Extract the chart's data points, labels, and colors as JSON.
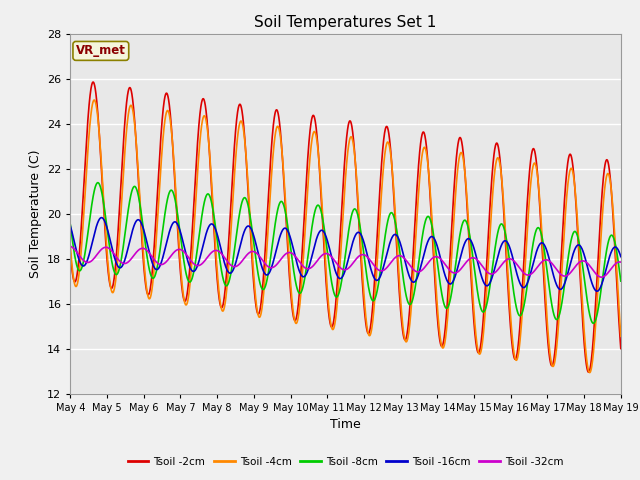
{
  "title": "Soil Temperatures Set 1",
  "xlabel": "Time",
  "ylabel": "Soil Temperature (C)",
  "ylim": [
    12,
    28
  ],
  "annotation": "VR_met",
  "background_color": "#e8e8e8",
  "grid_color": "#ffffff",
  "series": {
    "Tsoil -2cm": {
      "color": "#dd0000",
      "lw": 1.2
    },
    "Tsoil -4cm": {
      "color": "#ff8800",
      "lw": 1.2
    },
    "Tsoil -8cm": {
      "color": "#00cc00",
      "lw": 1.2
    },
    "Tsoil -16cm": {
      "color": "#0000cc",
      "lw": 1.2
    },
    "Tsoil -32cm": {
      "color": "#cc00cc",
      "lw": 1.2
    }
  },
  "tick_labels": [
    "May 4",
    "May 5",
    "May 6",
    "May 7",
    "May 8",
    "May 9",
    "May 10",
    "May 11",
    "May 12",
    "May 13",
    "May 14",
    "May 15",
    "May 16",
    "May 17",
    "May 18",
    "May 19"
  ],
  "yticks": [
    12,
    14,
    16,
    18,
    20,
    22,
    24,
    26,
    28
  ]
}
